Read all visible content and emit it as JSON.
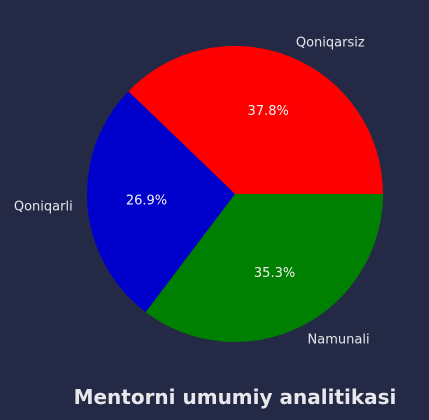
{
  "chart_data": {
    "type": "pie",
    "title": "Mentorni umumiy analitikasi",
    "slices": [
      {
        "label": "Qoniqarsiz",
        "value": 37.8,
        "percent_label": "37.8%",
        "color": "#ff0000"
      },
      {
        "label": "Qoniqarli",
        "value": 26.9,
        "percent_label": "26.9%",
        "color": "#0000cc"
      },
      {
        "label": "Namunali",
        "value": 35.3,
        "percent_label": "35.3%",
        "color": "#008000"
      }
    ]
  },
  "colors": {
    "background": "#242a46"
  }
}
